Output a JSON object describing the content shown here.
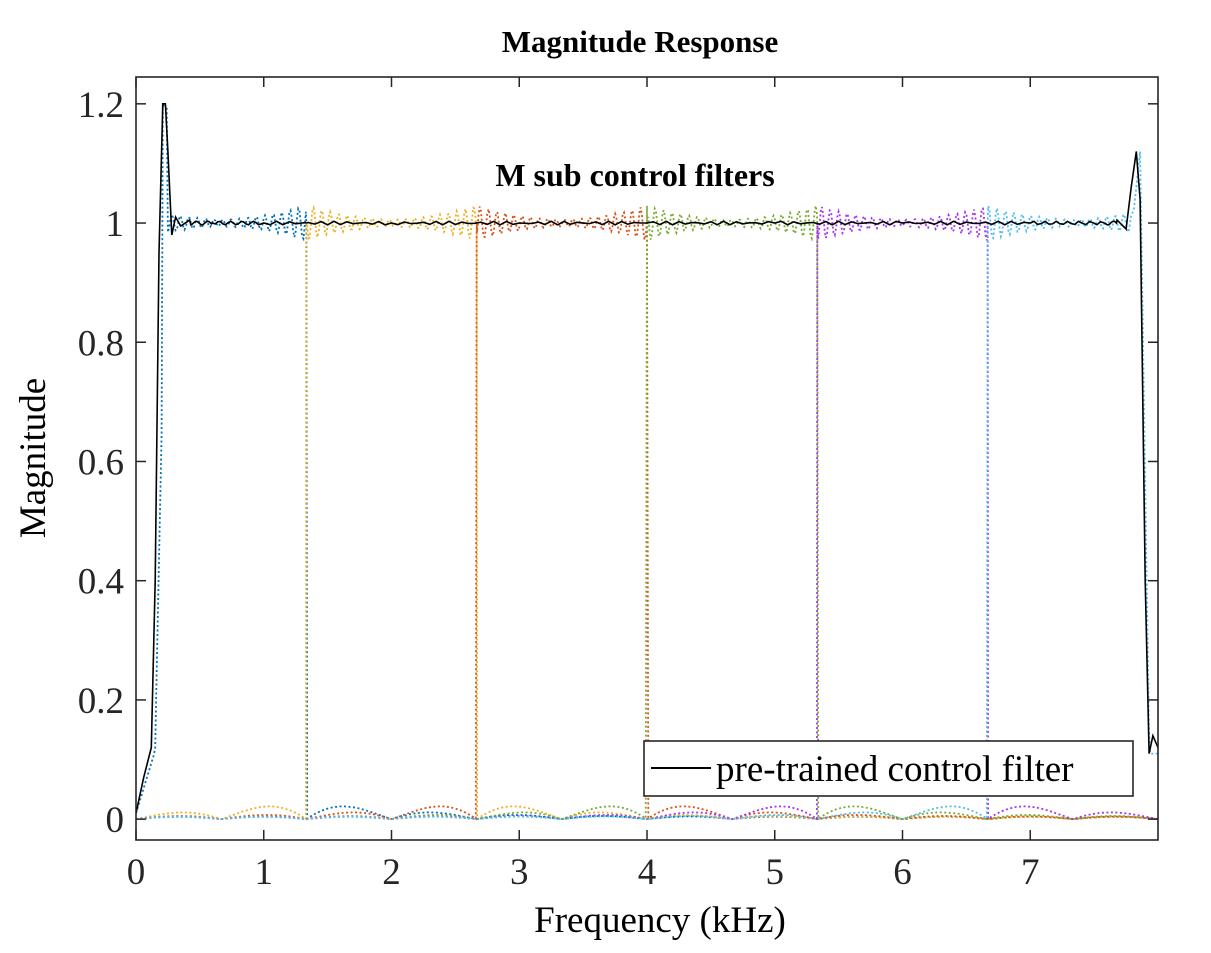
{
  "chart_data": {
    "type": "line",
    "title": "Magnitude Response",
    "annotation": "M sub control filters",
    "xlabel": "Frequency (kHz)",
    "ylabel": "Magnitude",
    "xlim": [
      0,
      8
    ],
    "ylim": [
      -0.035,
      1.245
    ],
    "xticks": [
      "0",
      "1",
      "2",
      "3",
      "4",
      "5",
      "6",
      "7"
    ],
    "yticks": [
      "0",
      "0.2",
      "0.4",
      "0.6",
      "0.8",
      "1",
      "1.2"
    ],
    "legend": {
      "entries": [
        "pre-trained control filter"
      ],
      "placement": "bottom-right"
    },
    "sub_filter_edges_khz": [
      0,
      1.333,
      2.667,
      4.0,
      5.333,
      6.667,
      8.0
    ],
    "series": [
      {
        "name": "pre-trained control filter",
        "style": "solid",
        "color": "#000000",
        "x": [
          0,
          0.06,
          0.12,
          0.15,
          0.18,
          0.21,
          0.23,
          0.25,
          0.28,
          0.31,
          0.35,
          0.42,
          0.6,
          1.0,
          2.0,
          3.0,
          4.0,
          5.0,
          6.0,
          7.0,
          7.58,
          7.68,
          7.75,
          7.79,
          7.83,
          7.86,
          7.9,
          7.93,
          7.96,
          8.0
        ],
        "y": [
          0.01,
          0.07,
          0.12,
          0.4,
          0.95,
          1.2,
          1.2,
          1.12,
          0.98,
          1.01,
          0.995,
          1.005,
          1.0,
          1.0,
          1.0,
          1.0,
          1.0,
          1.0,
          1.0,
          1.0,
          1.0,
          1.005,
          0.99,
          1.06,
          1.12,
          1.04,
          0.4,
          0.11,
          0.14,
          0.12
        ]
      }
    ],
    "colors": [
      "#0072BD",
      "#EDB120",
      "#D95319",
      "#77AC30",
      "#A535F0",
      "#4DBEEE"
    ]
  }
}
